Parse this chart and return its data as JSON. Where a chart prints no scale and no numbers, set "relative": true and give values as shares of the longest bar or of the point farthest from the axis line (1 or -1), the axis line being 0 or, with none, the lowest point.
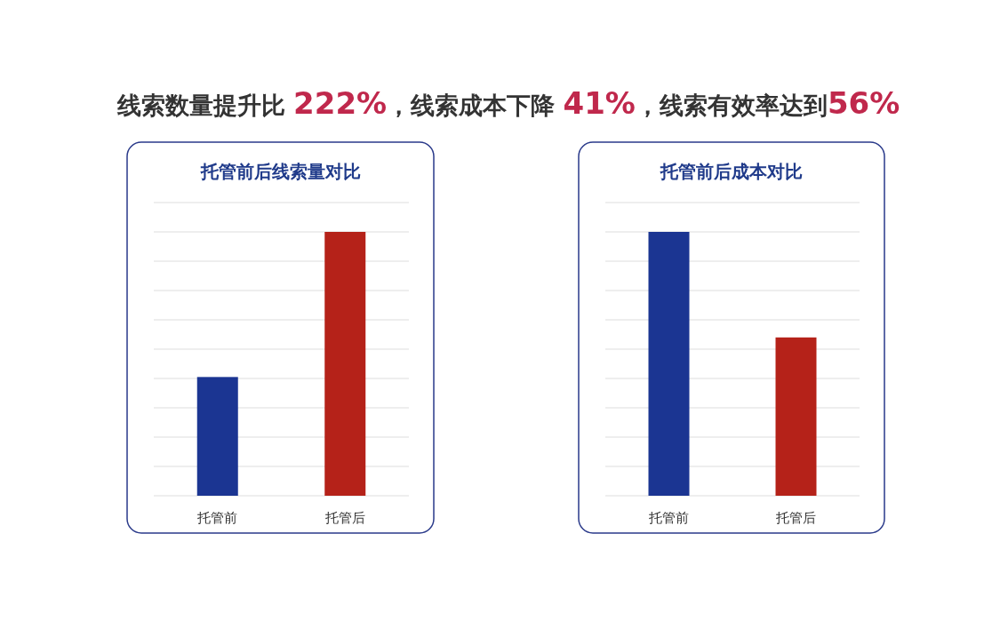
{
  "chart_data": [
    {
      "type": "other",
      "title": "线索数量提升比 222%，线索成本下降 41%，线索有效率达到56%",
      "color": "#c0284c"
    },
    {
      "type": "bar",
      "title": "托管前后线索量对比",
      "categories": [
        "托管前",
        "托管后"
      ],
      "values": [
        0.45,
        1
      ],
      "colors": [
        "#1b3592",
        "#b52219"
      ],
      "relative": true,
      "grid": "y"
    },
    {
      "type": "bar",
      "title": "托管前后成本对比",
      "categories": [
        "托管前",
        "托管后"
      ],
      "values": [
        1,
        0.6
      ],
      "colors": [
        "#1b3592",
        "#b52219"
      ],
      "relative": true,
      "grid": "y"
    }
  ]
}
